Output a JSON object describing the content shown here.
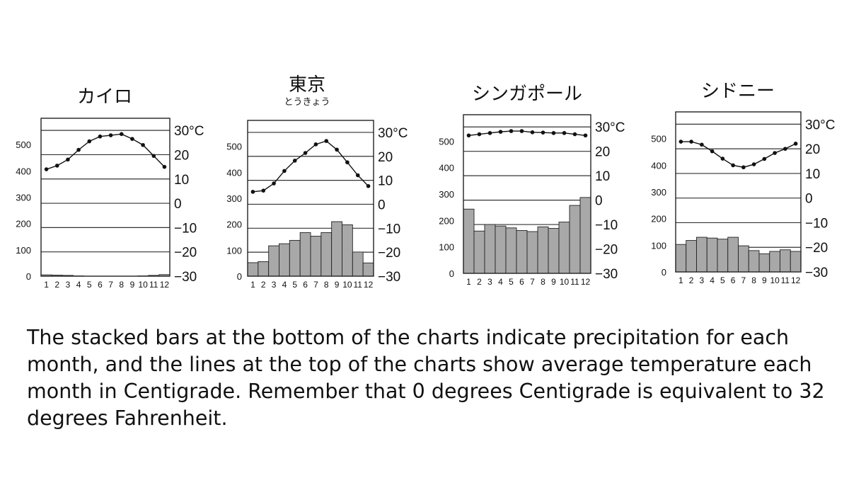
{
  "chart_data": [
    {
      "type": "bar",
      "title": "カイロ",
      "categories": [
        "1",
        "2",
        "3",
        "4",
        "5",
        "6",
        "7",
        "8",
        "9",
        "10",
        "11",
        "12"
      ],
      "series": [
        {
          "values": [
            5,
            4,
            3,
            1,
            0,
            0,
            0,
            0,
            0,
            1,
            3,
            6
          ]
        },
        {
          "values": [
            14,
            15.5,
            18,
            22,
            25.5,
            27.5,
            28,
            28.5,
            26.5,
            24,
            19.5,
            15
          ]
        }
      ],
      "left_ticks": [
        "0",
        "100",
        "200",
        "300",
        "400",
        "500"
      ],
      "right_ticks": [
        "−30",
        "−20",
        "−10",
        "0",
        "10",
        "20",
        "30°C"
      ],
      "ylim_left": [
        0,
        600
      ],
      "ylim_right": [
        -30,
        35
      ]
    },
    {
      "type": "bar",
      "title": "東京",
      "subtitle": "とうきょう",
      "categories": [
        "1",
        "2",
        "3",
        "4",
        "5",
        "6",
        "7",
        "8",
        "9",
        "10",
        "11",
        "12"
      ],
      "series": [
        {
          "values": [
            52,
            56,
            117,
            125,
            138,
            168,
            154,
            168,
            210,
            198,
            93,
            51
          ]
        },
        {
          "values": [
            5.2,
            5.7,
            8.7,
            13.9,
            18.2,
            21.4,
            25.0,
            26.4,
            22.8,
            17.5,
            12.1,
            7.6
          ]
        }
      ],
      "left_ticks": [
        "0",
        "100",
        "200",
        "300",
        "400",
        "500"
      ],
      "right_ticks": [
        "−30",
        "−20",
        "−10",
        "0",
        "10",
        "20",
        "30°C"
      ],
      "ylim_left": [
        0,
        600
      ],
      "ylim_right": [
        -30,
        35
      ]
    },
    {
      "type": "bar",
      "title": "シンガポール",
      "categories": [
        "1",
        "2",
        "3",
        "4",
        "5",
        "6",
        "7",
        "8",
        "9",
        "10",
        "11",
        "12"
      ],
      "series": [
        {
          "values": [
            243,
            160,
            185,
            179,
            172,
            162,
            158,
            176,
            170,
            194,
            257,
            287
          ]
        },
        {
          "values": [
            26.5,
            27,
            27.5,
            28,
            28.3,
            28.3,
            27.8,
            27.7,
            27.5,
            27.5,
            27,
            26.5
          ]
        }
      ],
      "left_ticks": [
        "0",
        "100",
        "200",
        "300",
        "400",
        "500"
      ],
      "right_ticks": [
        "−30",
        "−20",
        "−10",
        "0",
        "10",
        "20",
        "30°C"
      ],
      "ylim_left": [
        0,
        600
      ],
      "ylim_right": [
        -30,
        35
      ]
    },
    {
      "type": "bar",
      "title": "シドニー",
      "categories": [
        "1",
        "2",
        "3",
        "4",
        "5",
        "6",
        "7",
        "8",
        "9",
        "10",
        "11",
        "12"
      ],
      "series": [
        {
          "values": [
            103,
            118,
            130,
            127,
            123,
            130,
            98,
            80,
            68,
            77,
            83,
            77
          ]
        },
        {
          "values": [
            22.9,
            22.9,
            21.7,
            19.0,
            16.0,
            13.3,
            12.5,
            13.7,
            15.9,
            18.3,
            20.0,
            22.1
          ]
        }
      ],
      "left_ticks": [
        "0",
        "100",
        "200",
        "300",
        "400",
        "500"
      ],
      "right_ticks": [
        "−30",
        "−20",
        "−10",
        "0",
        "10",
        "20",
        "30°C"
      ],
      "ylim_left": [
        0,
        600
      ],
      "ylim_right": [
        -30,
        35
      ]
    }
  ],
  "colors": {
    "bar_fill": "#a8a8a8",
    "bar_stroke": "#222222",
    "line": "#111111",
    "frame": "#222222"
  },
  "caption": "The stacked bars at the bottom of the charts indicate precipitation for each month, and the lines at the top of the charts show average temperature each month in Centigrade. Remember that 0 degrees Centigrade is equivalent to 32 degrees Fahrenheit."
}
